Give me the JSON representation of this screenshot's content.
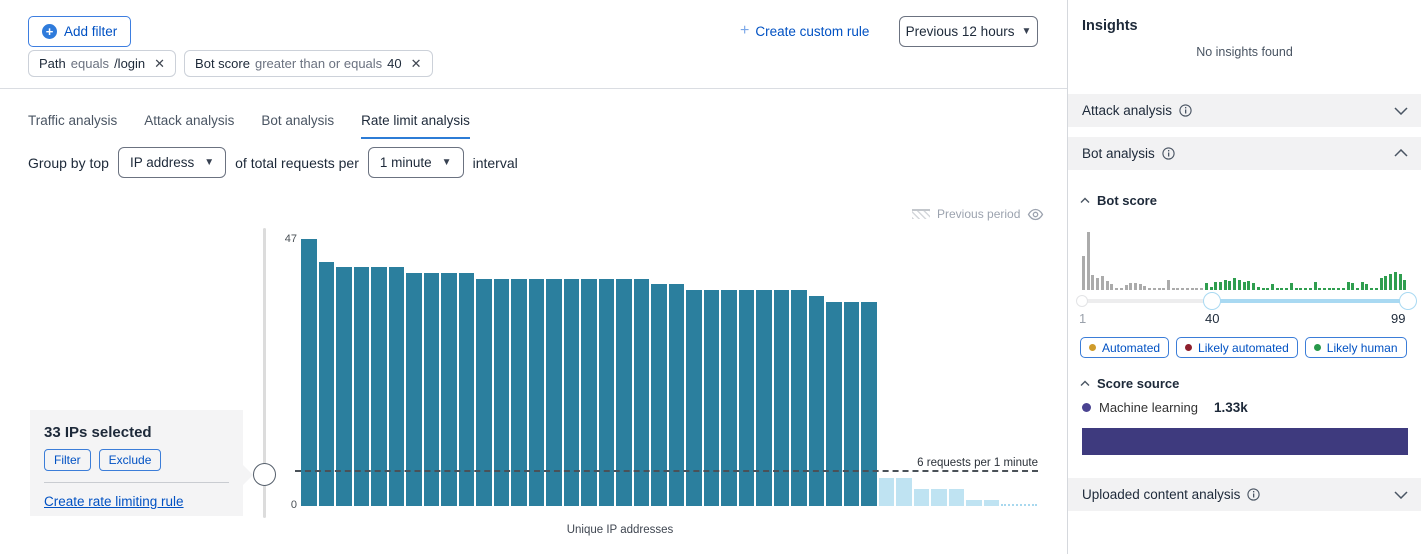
{
  "header": {
    "add_filter_label": "Add filter",
    "filters": [
      {
        "field": "Path",
        "operator": "equals",
        "value": "/login"
      },
      {
        "field": "Bot score",
        "operator": "greater than or equals",
        "value": "40"
      }
    ],
    "create_custom_rule_label": "Create custom rule",
    "time_range_label": "Previous 12 hours"
  },
  "tabs": [
    {
      "label": "Traffic analysis",
      "active": false
    },
    {
      "label": "Attack analysis",
      "active": false
    },
    {
      "label": "Bot analysis",
      "active": false
    },
    {
      "label": "Rate limit analysis",
      "active": true
    }
  ],
  "group_by": {
    "prefix": "Group by top",
    "dimension_value": "IP address",
    "middle": "of total requests per",
    "interval_value": "1 minute",
    "suffix": "interval"
  },
  "chart": {
    "legend_previous_period": "Previous period",
    "y_max_label": "47",
    "y_min_label": "0",
    "threshold_label": "6 requests per 1 minute",
    "x_axis_label": "Unique IP addresses",
    "selection_panel": {
      "title": "33 IPs selected",
      "filter_button": "Filter",
      "exclude_button": "Exclude",
      "create_rule_link": "Create rate limiting rule"
    }
  },
  "insights": {
    "title": "Insights",
    "empty_message": "No insights found",
    "sections": [
      {
        "label": "Attack analysis",
        "state": "collapsed"
      },
      {
        "label": "Bot analysis",
        "state": "expanded"
      },
      {
        "label": "Uploaded content analysis",
        "state": "collapsed"
      }
    ],
    "bot_analysis": {
      "bot_score_title": "Bot score",
      "slider_labels": {
        "min": "1",
        "low": "40",
        "high": "99"
      },
      "legend_chips": [
        {
          "label": "Automated",
          "dot_color": "#cf9b2a"
        },
        {
          "label": "Likely automated",
          "dot_color": "#8e1f2c"
        },
        {
          "label": "Likely human",
          "dot_color": "#27984a"
        }
      ],
      "score_source_title": "Score source",
      "score_source": {
        "label": "Machine learning",
        "value": "1.33k",
        "dot_color": "#4a4391",
        "bar_color": "#3e3a7e"
      }
    }
  },
  "chart_data": [
    {
      "type": "bar",
      "title": "Rate limit analysis — requests per 1 minute by unique IP",
      "xlabel": "Unique IP addresses",
      "ylabel": "",
      "ylim": [
        0,
        47
      ],
      "y_ticks": [
        0,
        47
      ],
      "grid": false,
      "legend": [
        {
          "label": "Previous period",
          "style": "hatched",
          "position": "top-right"
        }
      ],
      "threshold": {
        "value": 6,
        "label": "6 requests per 1 minute"
      },
      "series": [
        {
          "name": "selected-ips-above-threshold",
          "color": "#2b7f9e",
          "values": [
            47,
            43,
            42,
            42,
            42,
            42,
            41,
            41,
            41,
            41,
            40,
            40,
            40,
            40,
            40,
            40,
            40,
            40,
            40,
            40,
            39,
            39,
            38,
            38,
            38,
            38,
            38,
            38,
            38,
            37,
            36,
            36,
            36
          ]
        },
        {
          "name": "ips-below-threshold",
          "color": "#bfe3f2",
          "values": [
            5,
            5,
            3,
            3,
            3,
            1,
            1
          ]
        },
        {
          "name": "trailing-near-zero",
          "color": "#a8d8ee",
          "render": "dots",
          "values": [
            0.2,
            0.2,
            0.2,
            0.2,
            0.2,
            0.2,
            0.2,
            0.2,
            0.2,
            0.2
          ]
        }
      ]
    },
    {
      "type": "histogram",
      "title": "Bot score distribution",
      "xlim": [
        1,
        99
      ],
      "x_ticks": [
        1,
        40,
        99
      ],
      "selected_range": [
        40,
        99
      ],
      "colors": {
        "unselected": "#ababab",
        "selected": "#2f9e4f"
      },
      "bars": [
        {
          "h": 34,
          "c": "#ababab"
        },
        {
          "h": 58,
          "c": "#ababab"
        },
        {
          "h": 15,
          "c": "#ababab"
        },
        {
          "h": 12,
          "c": "#ababab"
        },
        {
          "h": 14,
          "c": "#ababab"
        },
        {
          "h": 9,
          "c": "#ababab"
        },
        {
          "h": 6,
          "c": "#ababab"
        },
        {
          "h": 2,
          "c": "#ababab"
        },
        {
          "h": 2,
          "c": "#ababab"
        },
        {
          "h": 5,
          "c": "#ababab"
        },
        {
          "h": 7,
          "c": "#ababab"
        },
        {
          "h": 7,
          "c": "#ababab"
        },
        {
          "h": 6,
          "c": "#ababab"
        },
        {
          "h": 4,
          "c": "#ababab"
        },
        {
          "h": 2,
          "c": "#ababab"
        },
        {
          "h": 2,
          "c": "#ababab"
        },
        {
          "h": 2,
          "c": "#ababab"
        },
        {
          "h": 2,
          "c": "#ababab"
        },
        {
          "h": 10,
          "c": "#ababab"
        },
        {
          "h": 2,
          "c": "#ababab"
        },
        {
          "h": 2,
          "c": "#ababab"
        },
        {
          "h": 2,
          "c": "#ababab"
        },
        {
          "h": 2,
          "c": "#ababab"
        },
        {
          "h": 2,
          "c": "#ababab"
        },
        {
          "h": 2,
          "c": "#ababab"
        },
        {
          "h": 2,
          "c": "#ababab"
        },
        {
          "h": 7,
          "c": "#2f9e4f"
        },
        {
          "h": 3,
          "c": "#2f9e4f"
        },
        {
          "h": 8,
          "c": "#2f9e4f"
        },
        {
          "h": 8,
          "c": "#2f9e4f"
        },
        {
          "h": 10,
          "c": "#2f9e4f"
        },
        {
          "h": 9,
          "c": "#2f9e4f"
        },
        {
          "h": 12,
          "c": "#2f9e4f"
        },
        {
          "h": 10,
          "c": "#2f9e4f"
        },
        {
          "h": 8,
          "c": "#2f9e4f"
        },
        {
          "h": 9,
          "c": "#2f9e4f"
        },
        {
          "h": 7,
          "c": "#2f9e4f"
        },
        {
          "h": 3,
          "c": "#2f9e4f"
        },
        {
          "h": 2,
          "c": "#2f9e4f"
        },
        {
          "h": 2,
          "c": "#2f9e4f"
        },
        {
          "h": 6,
          "c": "#2f9e4f"
        },
        {
          "h": 2,
          "c": "#2f9e4f"
        },
        {
          "h": 2,
          "c": "#2f9e4f"
        },
        {
          "h": 2,
          "c": "#2f9e4f"
        },
        {
          "h": 7,
          "c": "#2f9e4f"
        },
        {
          "h": 2,
          "c": "#2f9e4f"
        },
        {
          "h": 2,
          "c": "#2f9e4f"
        },
        {
          "h": 2,
          "c": "#2f9e4f"
        },
        {
          "h": 2,
          "c": "#2f9e4f"
        },
        {
          "h": 8,
          "c": "#2f9e4f"
        },
        {
          "h": 2,
          "c": "#2f9e4f"
        },
        {
          "h": 2,
          "c": "#2f9e4f"
        },
        {
          "h": 2,
          "c": "#2f9e4f"
        },
        {
          "h": 2,
          "c": "#2f9e4f"
        },
        {
          "h": 2,
          "c": "#2f9e4f"
        },
        {
          "h": 2,
          "c": "#2f9e4f"
        },
        {
          "h": 8,
          "c": "#2f9e4f"
        },
        {
          "h": 7,
          "c": "#2f9e4f"
        },
        {
          "h": 2,
          "c": "#2f9e4f"
        },
        {
          "h": 8,
          "c": "#2f9e4f"
        },
        {
          "h": 6,
          "c": "#2f9e4f"
        },
        {
          "h": 2,
          "c": "#2f9e4f"
        },
        {
          "h": 2,
          "c": "#2f9e4f"
        },
        {
          "h": 12,
          "c": "#2f9e4f"
        },
        {
          "h": 14,
          "c": "#2f9e4f"
        },
        {
          "h": 16,
          "c": "#2f9e4f"
        },
        {
          "h": 18,
          "c": "#2f9e4f"
        },
        {
          "h": 16,
          "c": "#2f9e4f"
        },
        {
          "h": 10,
          "c": "#2f9e4f"
        }
      ]
    }
  ]
}
